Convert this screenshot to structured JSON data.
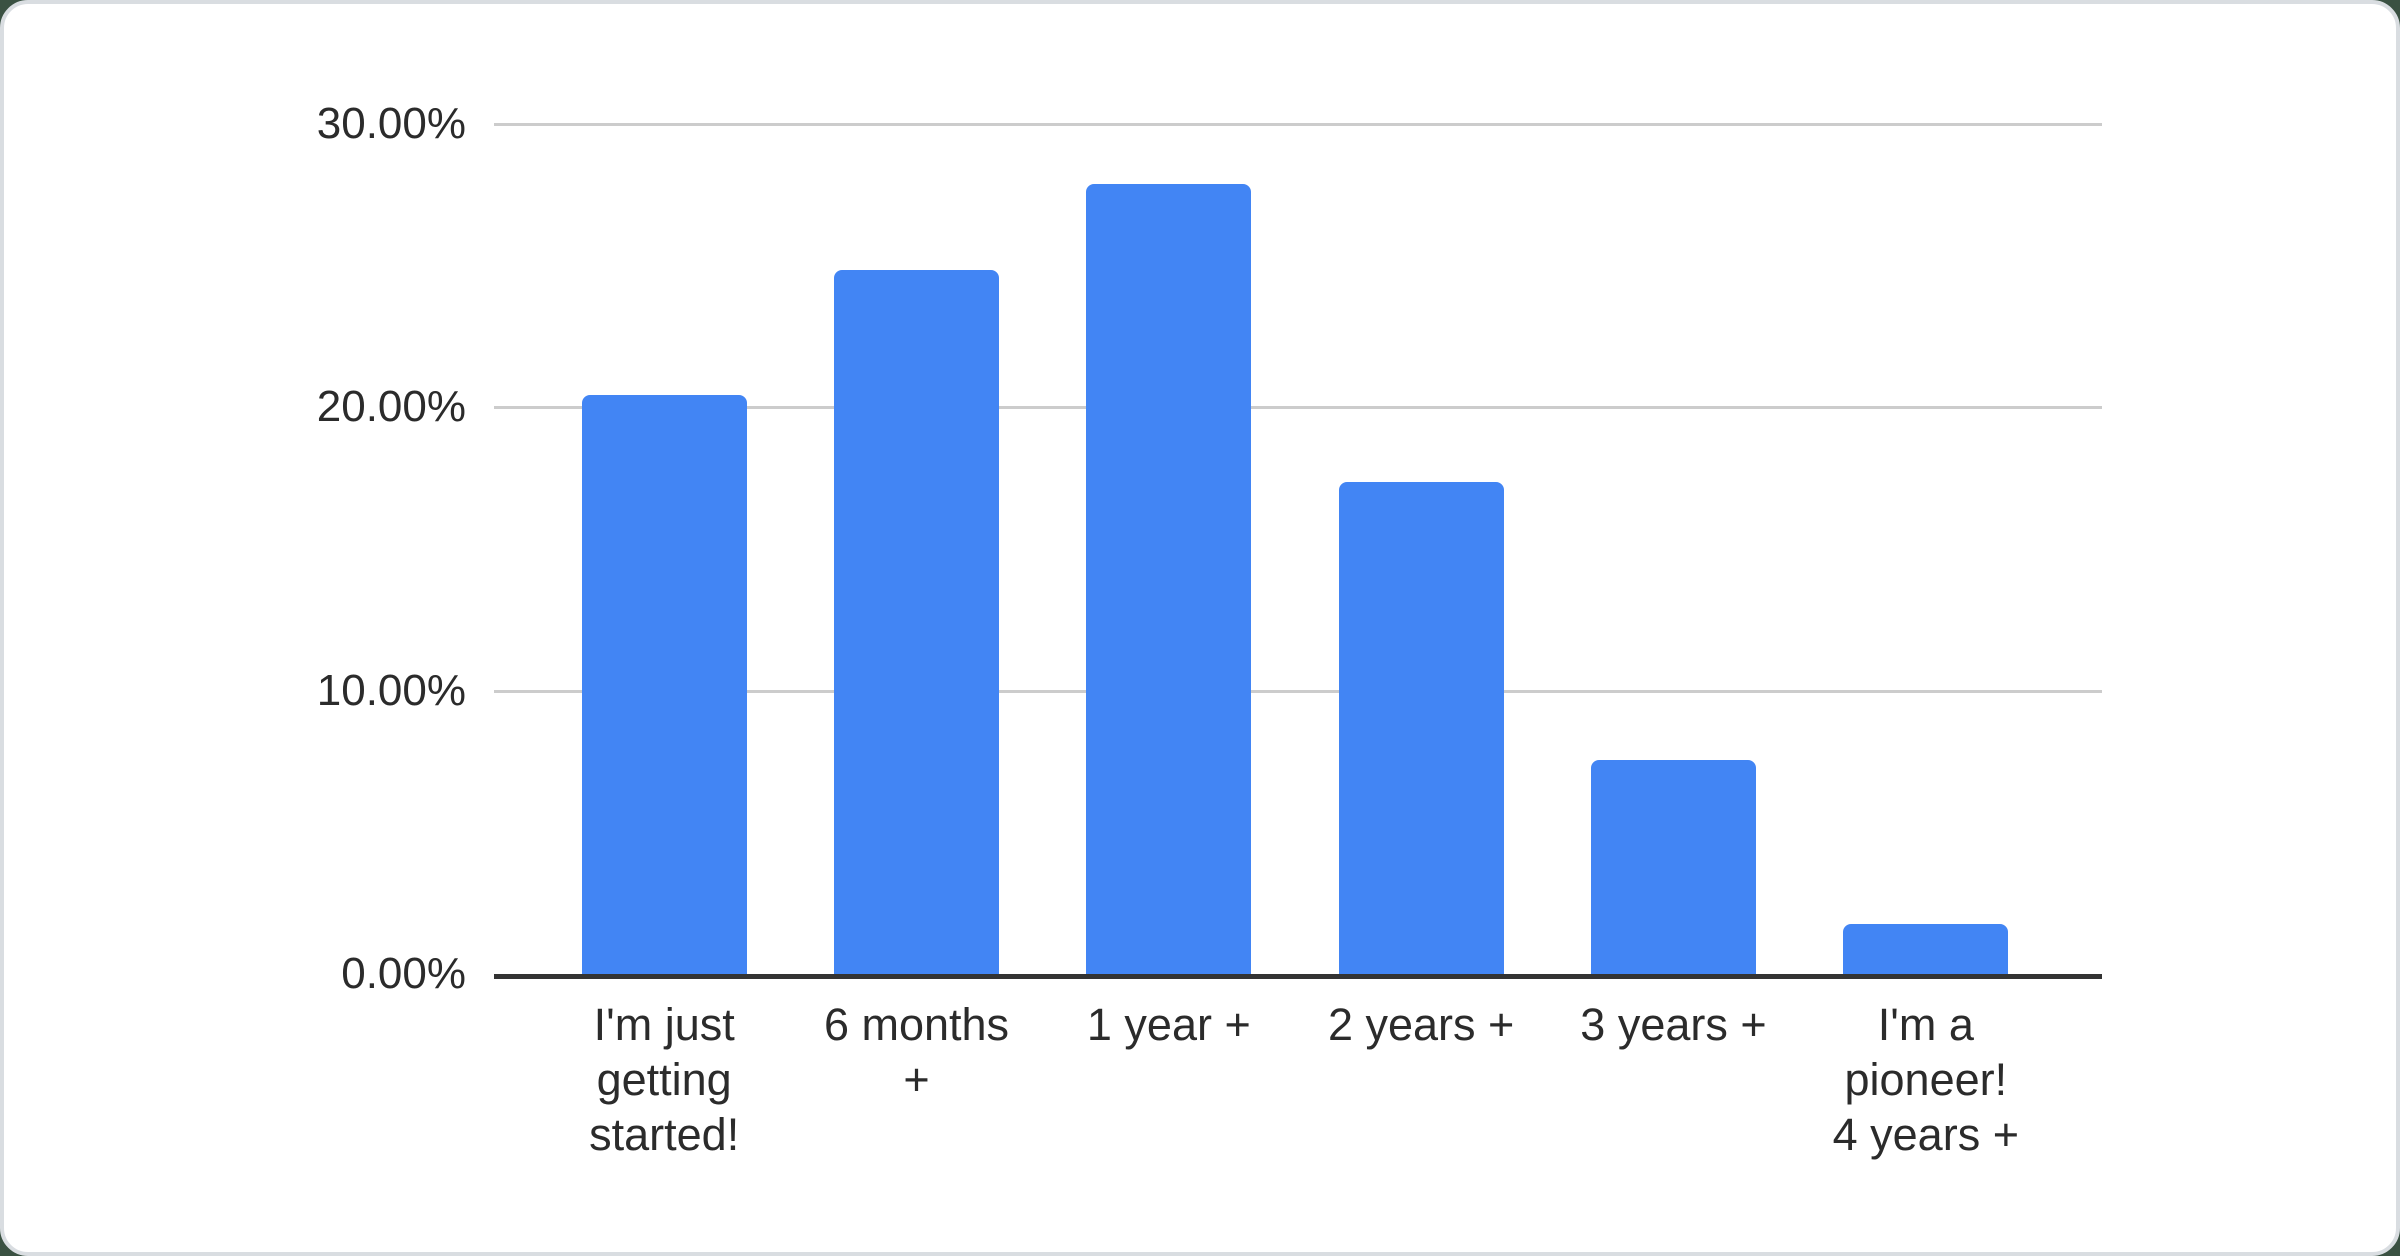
{
  "page": {
    "background_color": "#3a5142",
    "card_background": "#ffffff",
    "card_border_color": "#d9dde1"
  },
  "chart_data": {
    "type": "bar",
    "categories": [
      "I'm just getting started!",
      "6 months +",
      "1 year +",
      "2 years +",
      "3 years +",
      "I'm a pioneer! 4 years +"
    ],
    "category_lines": [
      [
        "I'm just",
        "getting",
        "started!"
      ],
      [
        "6 months",
        "+"
      ],
      [
        "1 year +"
      ],
      [
        "2 years +"
      ],
      [
        "3 years +"
      ],
      [
        "I'm a",
        "pioneer!",
        "4 years +"
      ]
    ],
    "values": [
      20.45,
      24.85,
      27.9,
      17.35,
      7.55,
      1.75
    ],
    "value_unit": "%",
    "ylim": [
      0,
      30
    ],
    "yticks": [
      {
        "value": 30,
        "label": "30.00%"
      },
      {
        "value": 20,
        "label": "20.00%"
      },
      {
        "value": 10,
        "label": "10.00%"
      },
      {
        "value": 0,
        "label": "0.00%"
      }
    ],
    "grid": true,
    "legend": "none",
    "bar_color": "#4285f4",
    "gridline_color": "#cccccc",
    "axis_line_color": "#333333",
    "label_color": "#2b2b2b"
  }
}
